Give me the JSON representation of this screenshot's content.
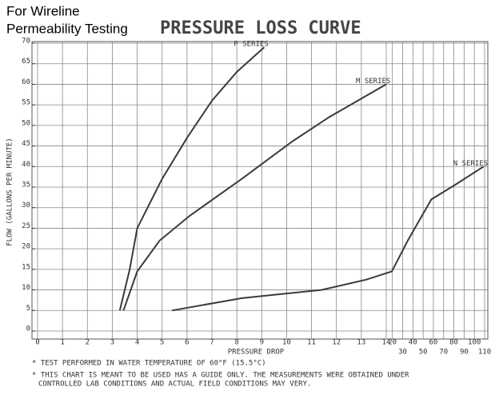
{
  "header": [
    "For Wireline",
    "Permeability Testing"
  ],
  "chart_data": {
    "type": "line",
    "title": "PRESSURE LOSS CURVE",
    "x_label": "PRESSURE DROP",
    "y_label": "FLOW (GALLONS PER MINUTE)",
    "xlim": [
      0,
      110
    ],
    "xbreak": 14,
    "xticks": [
      0,
      1,
      2,
      3,
      4,
      5,
      6,
      7,
      8,
      9,
      10,
      11,
      12,
      13,
      14,
      20,
      30,
      40,
      50,
      60,
      70,
      80,
      90,
      100,
      110
    ],
    "ylim": [
      0,
      70
    ],
    "yticks": [
      0,
      5,
      10,
      15,
      20,
      25,
      30,
      35,
      40,
      45,
      50,
      55,
      60,
      65,
      70
    ],
    "grid": true,
    "series": [
      {
        "name": "P SERIES",
        "color": "#3a3a3a",
        "x": [
          3.3,
          3.5,
          3.7,
          4,
          5,
          6,
          7,
          8,
          9.1
        ],
        "values": [
          5,
          10,
          15,
          25,
          37,
          47,
          56,
          63,
          69
        ]
      },
      {
        "name": "M SERIES",
        "color": "#3a3a3a",
        "x": [
          3.45,
          4,
          4.9,
          6.1,
          8.2,
          10.2,
          11.7,
          14
        ],
        "values": [
          5,
          14.5,
          22,
          28,
          37,
          46,
          52,
          60
        ]
      },
      {
        "name": "N SERIES",
        "color": "#3a3a3a",
        "x": [
          5.4,
          8.2,
          11.4,
          13.2,
          19.5,
          35,
          58,
          81,
          109
        ],
        "values": [
          5,
          8,
          10,
          12.5,
          14.5,
          22,
          32,
          35.5,
          40
        ]
      }
    ],
    "notes": [
      "* TEST PERFORMED IN WATER TEMPERATURE OF 60°F (15.5°C)",
      "* THIS CHART IS MEANT TO BE USED HAS A GUIDE ONLY. THE MEASUREMENTS WERE OBTAINED UNDER",
      "CONTROLLED LAB CONDITIONS AND ACTUAL FIELD CONDITIONS MAY VERY."
    ]
  }
}
